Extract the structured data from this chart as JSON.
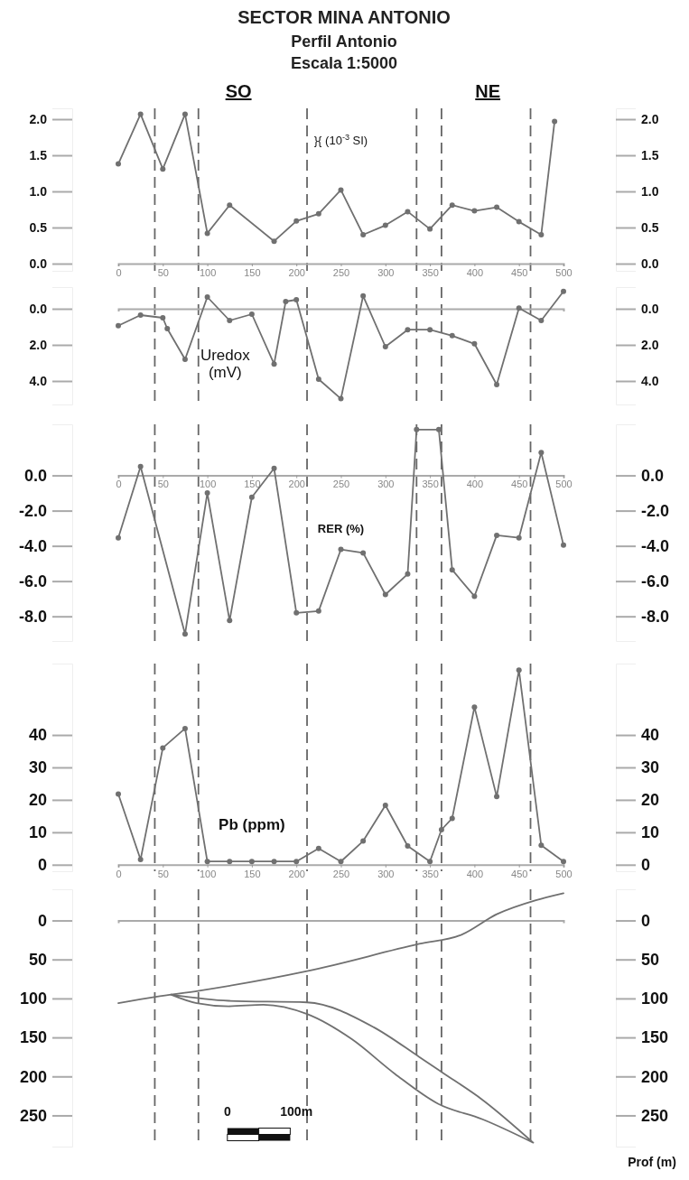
{
  "chart_data": [
    {
      "type": "line",
      "title": "SECTOR MINA ANTONIO",
      "subtitle": "Perfil Antonio\nEscala 1:5000",
      "annotations": [
        "SO",
        "NE"
      ],
      "marker": "circle",
      "xlim": [
        0,
        500
      ],
      "xticks": [
        0,
        50,
        100,
        150,
        200,
        250,
        300,
        350,
        400,
        450,
        500
      ],
      "ylim": [
        -0.1,
        2.15
      ],
      "yticks": [
        {
          "value": 0,
          "label": "0.0"
        },
        {
          "value": 0.5,
          "label": "0.5"
        },
        {
          "value": 1,
          "label": "1.0"
        },
        {
          "value": 1.5,
          "label": "1.5"
        },
        {
          "value": 2,
          "label": "2.0"
        }
      ],
      "y2lim": [
        -0.1,
        2.15
      ],
      "y2ticks": [
        {
          "value": 0,
          "label": "0.0"
        },
        {
          "value": 0.5,
          "label": "0.5"
        },
        {
          "value": 1,
          "label": "1.0"
        },
        {
          "value": 1.5,
          "label": "1.5"
        },
        {
          "value": 2,
          "label": "2.0"
        }
      ],
      "ref_lines": [
        {
          "axis": "x",
          "value": 41,
          "line_style": "dashed"
        },
        {
          "axis": "x",
          "value": 90,
          "line_style": "dashed"
        },
        {
          "axis": "x",
          "value": 212,
          "line_style": "dashed"
        },
        {
          "axis": "x",
          "value": 335,
          "line_style": "dashed"
        },
        {
          "axis": "x",
          "value": 363,
          "line_style": "dashed"
        },
        {
          "axis": "x",
          "value": 463,
          "line_style": "dashed"
        }
      ],
      "series": [
        {
          "name": "}{ (10$^{-3}$ SI)",
          "color": "#707070",
          "x": [
            0,
            25,
            50,
            75,
            100,
            125,
            175,
            200,
            225,
            250,
            275,
            300,
            325,
            350,
            375,
            400,
            425,
            450,
            475,
            490
          ],
          "values": [
            1.38,
            2.07,
            1.31,
            2.07,
            0.42,
            0.81,
            0.31,
            0.59,
            0.69,
            1.02,
            0.4,
            0.53,
            0.72,
            0.48,
            0.81,
            0.73,
            0.78,
            0.58,
            0.4,
            1.97
          ]
        }
      ]
    },
    {
      "type": "line",
      "marker": "circle",
      "xlim": [
        0,
        500
      ],
      "tick_labels": "y",
      "ylim": [
        5.3,
        -1.2
      ],
      "yticks": [
        {
          "value": 0,
          "label": "0.0"
        },
        {
          "value": 2,
          "label": "2.0"
        },
        {
          "value": 4,
          "label": "4.0"
        }
      ],
      "y2lim": [
        5.3,
        -1.2
      ],
      "y2ticks": [
        {
          "value": 0,
          "label": "0.0"
        },
        {
          "value": 2,
          "label": "2.0"
        },
        {
          "value": 4,
          "label": "4.0"
        }
      ],
      "ref_lines": [
        {
          "axis": "x",
          "value": 41,
          "line_style": "dashed"
        },
        {
          "axis": "x",
          "value": 90,
          "line_style": "dashed"
        },
        {
          "axis": "x",
          "value": 212,
          "line_style": "dashed"
        },
        {
          "axis": "x",
          "value": 335,
          "line_style": "dashed"
        },
        {
          "axis": "x",
          "value": 363,
          "line_style": "dashed"
        },
        {
          "axis": "x",
          "value": 463,
          "line_style": "dashed"
        }
      ],
      "series": [
        {
          "name": "Uredox\n(mV)",
          "color": "#707070",
          "x": [
            0,
            25,
            50,
            55,
            75,
            100,
            125,
            150,
            175,
            188,
            200,
            225,
            250,
            275,
            300,
            325,
            350,
            375,
            400,
            425,
            450,
            475,
            500
          ],
          "values": [
            0.94,
            0.35,
            0.5,
            1.1,
            2.8,
            -0.65,
            0.65,
            0.3,
            3.06,
            -0.4,
            -0.5,
            3.9,
            4.98,
            -0.71,
            2.1,
            1.16,
            1.16,
            1.49,
            1.94,
            4.2,
            -0.04,
            0.65,
            -0.96
          ]
        }
      ]
    },
    {
      "type": "line",
      "marker": "circle",
      "xlim": [
        0,
        500
      ],
      "xticks": [
        0,
        50,
        100,
        150,
        200,
        250,
        300,
        350,
        400,
        450,
        500
      ],
      "ylim": [
        -9.4,
        2.9
      ],
      "yticks": [
        {
          "value": 0,
          "label": "0.0"
        },
        {
          "value": -2,
          "label": "-2.0"
        },
        {
          "value": -4,
          "label": "-4.0"
        },
        {
          "value": -6,
          "label": "-6.0"
        },
        {
          "value": -8,
          "label": "-8.0"
        }
      ],
      "y2lim": [
        -9.4,
        2.9
      ],
      "y2ticks": [
        {
          "value": 0,
          "label": "0.0"
        },
        {
          "value": -2,
          "label": "-2.0"
        },
        {
          "value": -4,
          "label": "-4.0"
        },
        {
          "value": -6,
          "label": "-6.0"
        },
        {
          "value": -8,
          "label": "-8.0"
        }
      ],
      "ref_lines": [
        {
          "axis": "x",
          "value": 41,
          "line_style": "dashed"
        },
        {
          "axis": "x",
          "value": 90,
          "line_style": "dashed"
        },
        {
          "axis": "x",
          "value": 212,
          "line_style": "dashed"
        },
        {
          "axis": "x",
          "value": 335,
          "line_style": "dashed"
        },
        {
          "axis": "x",
          "value": 363,
          "line_style": "dashed"
        },
        {
          "axis": "x",
          "value": 463,
          "line_style": "dashed"
        }
      ],
      "series": [
        {
          "name": "RER (%)",
          "color": "#707070",
          "x": [
            0,
            25,
            75,
            100,
            125,
            150,
            175,
            200,
            225,
            250,
            275,
            300,
            325,
            335,
            360,
            375,
            400,
            425,
            450,
            475,
            500
          ],
          "values": [
            -3.54,
            0.5,
            -9.0,
            -1.0,
            -8.24,
            -1.24,
            0.4,
            -7.8,
            -7.7,
            -4.2,
            -4.4,
            -6.76,
            -5.6,
            2.6,
            2.6,
            -5.36,
            -6.86,
            -3.4,
            -3.54,
            1.3,
            -3.96
          ]
        }
      ]
    },
    {
      "type": "line",
      "marker": "circle",
      "xlim": [
        0,
        500
      ],
      "xticks": [
        0,
        50,
        100,
        150,
        200,
        250,
        300,
        350,
        400,
        450,
        500
      ],
      "ylim": [
        -2,
        62
      ],
      "yticks": [
        0,
        10,
        20,
        30,
        40
      ],
      "y2lim": [
        -2,
        62
      ],
      "y2ticks": [
        0,
        10,
        20,
        30,
        40
      ],
      "ref_lines": [
        {
          "axis": "x",
          "value": 41,
          "line_style": "dashed"
        },
        {
          "axis": "x",
          "value": 90,
          "line_style": "dashed"
        },
        {
          "axis": "x",
          "value": 212,
          "line_style": "dashed"
        },
        {
          "axis": "x",
          "value": 335,
          "line_style": "dashed"
        },
        {
          "axis": "x",
          "value": 363,
          "line_style": "dashed"
        },
        {
          "axis": "x",
          "value": 463,
          "line_style": "dashed"
        }
      ],
      "series": [
        {
          "name": "Pb (ppm)",
          "color": "#707070",
          "x": [
            0,
            25,
            50,
            75,
            100,
            125,
            150,
            175,
            200,
            225,
            250,
            275,
            300,
            325,
            350,
            363,
            375,
            400,
            425,
            450,
            475,
            500
          ],
          "values": [
            21.8,
            1.6,
            36,
            42,
            1,
            1,
            1,
            1,
            1,
            5,
            1,
            7.3,
            18.3,
            5.8,
            1,
            10.8,
            14.3,
            48.6,
            21,
            60,
            6,
            1
          ]
        }
      ]
    },
    {
      "type": "line",
      "marker": "none",
      "xlim": [
        0,
        500
      ],
      "tick_labels": "y",
      "ylim": [
        290,
        -40
      ],
      "y2label": "Prof (m)",
      "annotations": [
        "0",
        "100m"
      ],
      "yticks": [
        0,
        50,
        100,
        150,
        200,
        250
      ],
      "y2lim": [
        290,
        -40
      ],
      "y2ticks": [
        0,
        50,
        100,
        150,
        200,
        250
      ],
      "ref_lines": [
        {
          "axis": "x",
          "value": 41,
          "line_style": "dashed"
        },
        {
          "axis": "x",
          "value": 90,
          "line_style": "dashed"
        },
        {
          "axis": "x",
          "value": 212,
          "line_style": "dashed"
        },
        {
          "axis": "x",
          "value": 335,
          "line_style": "dashed"
        },
        {
          "axis": "x",
          "value": 363,
          "line_style": "dashed"
        },
        {
          "axis": "x",
          "value": 463,
          "line_style": "dashed"
        }
      ],
      "series": [
        {
          "color": "#707070",
          "x": [
            0,
            42,
            91,
            212,
            338,
            386,
            425,
            469,
            500
          ],
          "values": [
            106,
            98,
            90,
            65,
            30,
            18,
            -8,
            -26,
            -35
          ]
        }
      ]
    }
  ]
}
